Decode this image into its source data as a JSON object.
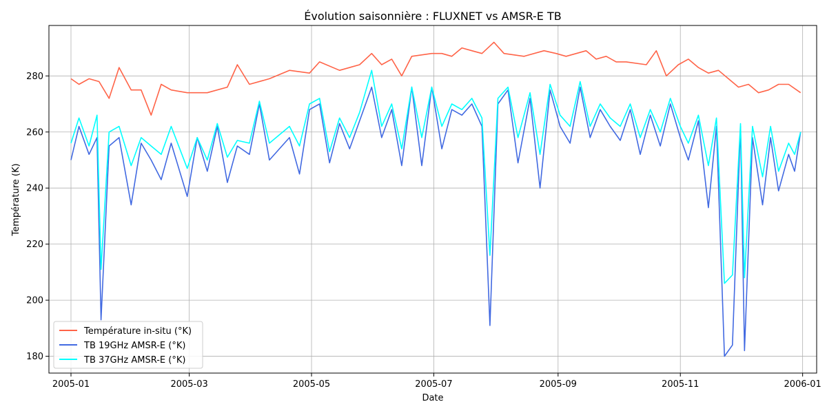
{
  "chart_data": {
    "type": "line",
    "title": "Évolution saisonnière : FLUXNET vs AMSR-E TB",
    "xlabel": "Date",
    "ylabel": "Température (K)",
    "x_range": [
      "2004-12-21",
      "2006-01-08"
    ],
    "ylim": [
      174,
      298
    ],
    "grid": true,
    "legend_position": "bottom-left",
    "x_ticks": [
      "2005-01",
      "2005-03",
      "2005-05",
      "2005-07",
      "2005-09",
      "2005-11",
      "2006-01"
    ],
    "y_ticks": [
      180,
      200,
      220,
      240,
      260,
      280
    ],
    "series": [
      {
        "name": "Température in-situ (°K)",
        "color": "#ff6347",
        "points": [
          [
            "2005-01-01",
            279
          ],
          [
            "2005-01-05",
            277
          ],
          [
            "2005-01-10",
            279
          ],
          [
            "2005-01-15",
            278
          ],
          [
            "2005-01-20",
            272
          ],
          [
            "2005-01-25",
            283
          ],
          [
            "2005-01-31",
            275
          ],
          [
            "2005-02-05",
            275
          ],
          [
            "2005-02-10",
            266
          ],
          [
            "2005-02-15",
            277
          ],
          [
            "2005-02-20",
            275
          ],
          [
            "2005-02-28",
            274
          ],
          [
            "2005-03-10",
            274
          ],
          [
            "2005-03-20",
            276
          ],
          [
            "2005-03-25",
            284
          ],
          [
            "2005-03-31",
            277
          ],
          [
            "2005-04-10",
            279
          ],
          [
            "2005-04-20",
            282
          ],
          [
            "2005-04-30",
            281
          ],
          [
            "2005-05-05",
            285
          ],
          [
            "2005-05-15",
            282
          ],
          [
            "2005-05-25",
            284
          ],
          [
            "2005-05-31",
            288
          ],
          [
            "2005-06-05",
            284
          ],
          [
            "2005-06-10",
            286
          ],
          [
            "2005-06-15",
            280
          ],
          [
            "2005-06-20",
            287
          ],
          [
            "2005-06-30",
            288
          ],
          [
            "2005-07-05",
            288
          ],
          [
            "2005-07-10",
            287
          ],
          [
            "2005-07-15",
            290
          ],
          [
            "2005-07-20",
            289
          ],
          [
            "2005-07-25",
            288
          ],
          [
            "2005-07-31",
            292
          ],
          [
            "2005-08-05",
            288
          ],
          [
            "2005-08-15",
            287
          ],
          [
            "2005-08-25",
            289
          ],
          [
            "2005-08-31",
            288
          ],
          [
            "2005-09-05",
            287
          ],
          [
            "2005-09-15",
            289
          ],
          [
            "2005-09-20",
            286
          ],
          [
            "2005-09-25",
            287
          ],
          [
            "2005-09-30",
            285
          ],
          [
            "2005-10-05",
            285
          ],
          [
            "2005-10-15",
            284
          ],
          [
            "2005-10-20",
            289
          ],
          [
            "2005-10-25",
            280
          ],
          [
            "2005-10-31",
            284
          ],
          [
            "2005-11-05",
            286
          ],
          [
            "2005-11-10",
            283
          ],
          [
            "2005-11-15",
            281
          ],
          [
            "2005-11-20",
            282
          ],
          [
            "2005-11-25",
            279
          ],
          [
            "2005-11-30",
            276
          ],
          [
            "2005-12-05",
            277
          ],
          [
            "2005-12-10",
            274
          ],
          [
            "2005-12-15",
            275
          ],
          [
            "2005-12-20",
            277
          ],
          [
            "2005-12-25",
            277
          ],
          [
            "2005-12-31",
            274
          ]
        ]
      },
      {
        "name": "TB 19GHz AMSR-E (°K)",
        "color": "#4169e1",
        "points": [
          [
            "2005-01-01",
            250
          ],
          [
            "2005-01-05",
            262
          ],
          [
            "2005-01-10",
            252
          ],
          [
            "2005-01-14",
            258
          ],
          [
            "2005-01-16",
            193
          ],
          [
            "2005-01-20",
            255
          ],
          [
            "2005-01-25",
            258
          ],
          [
            "2005-01-31",
            234
          ],
          [
            "2005-02-05",
            256
          ],
          [
            "2005-02-10",
            250
          ],
          [
            "2005-02-15",
            243
          ],
          [
            "2005-02-20",
            256
          ],
          [
            "2005-02-28",
            237
          ],
          [
            "2005-03-05",
            258
          ],
          [
            "2005-03-10",
            246
          ],
          [
            "2005-03-15",
            262
          ],
          [
            "2005-03-20",
            242
          ],
          [
            "2005-03-25",
            255
          ],
          [
            "2005-03-31",
            252
          ],
          [
            "2005-04-05",
            270
          ],
          [
            "2005-04-10",
            250
          ],
          [
            "2005-04-20",
            258
          ],
          [
            "2005-04-25",
            245
          ],
          [
            "2005-04-30",
            268
          ],
          [
            "2005-05-05",
            270
          ],
          [
            "2005-05-10",
            249
          ],
          [
            "2005-05-15",
            263
          ],
          [
            "2005-05-20",
            254
          ],
          [
            "2005-05-25",
            264
          ],
          [
            "2005-05-31",
            276
          ],
          [
            "2005-06-05",
            258
          ],
          [
            "2005-06-10",
            268
          ],
          [
            "2005-06-15",
            248
          ],
          [
            "2005-06-20",
            276
          ],
          [
            "2005-06-25",
            248
          ],
          [
            "2005-06-30",
            276
          ],
          [
            "2005-07-05",
            254
          ],
          [
            "2005-07-10",
            268
          ],
          [
            "2005-07-15",
            266
          ],
          [
            "2005-07-20",
            270
          ],
          [
            "2005-07-25",
            262
          ],
          [
            "2005-07-29",
            191
          ],
          [
            "2005-08-02",
            270
          ],
          [
            "2005-08-07",
            275
          ],
          [
            "2005-08-12",
            249
          ],
          [
            "2005-08-18",
            272
          ],
          [
            "2005-08-23",
            240
          ],
          [
            "2005-08-28",
            275
          ],
          [
            "2005-09-02",
            262
          ],
          [
            "2005-09-07",
            256
          ],
          [
            "2005-09-12",
            276
          ],
          [
            "2005-09-17",
            258
          ],
          [
            "2005-09-22",
            268
          ],
          [
            "2005-09-27",
            262
          ],
          [
            "2005-10-02",
            257
          ],
          [
            "2005-10-07",
            268
          ],
          [
            "2005-10-12",
            252
          ],
          [
            "2005-10-17",
            266
          ],
          [
            "2005-10-22",
            255
          ],
          [
            "2005-10-27",
            270
          ],
          [
            "2005-11-01",
            258
          ],
          [
            "2005-11-05",
            250
          ],
          [
            "2005-11-10",
            264
          ],
          [
            "2005-11-15",
            233
          ],
          [
            "2005-11-19",
            262
          ],
          [
            "2005-11-23",
            180
          ],
          [
            "2005-11-27",
            184
          ],
          [
            "2005-12-01",
            262
          ],
          [
            "2005-12-03",
            182
          ],
          [
            "2005-12-07",
            258
          ],
          [
            "2005-12-12",
            234
          ],
          [
            "2005-12-16",
            258
          ],
          [
            "2005-12-20",
            239
          ],
          [
            "2005-12-25",
            252
          ],
          [
            "2005-12-28",
            246
          ],
          [
            "2005-12-31",
            260
          ]
        ]
      },
      {
        "name": "TB 37GHz AMSR-E (°K)",
        "color": "#00ffff",
        "points": [
          [
            "2005-01-01",
            256
          ],
          [
            "2005-01-05",
            265
          ],
          [
            "2005-01-10",
            255
          ],
          [
            "2005-01-14",
            266
          ],
          [
            "2005-01-16",
            211
          ],
          [
            "2005-01-20",
            260
          ],
          [
            "2005-01-25",
            262
          ],
          [
            "2005-01-31",
            248
          ],
          [
            "2005-02-05",
            258
          ],
          [
            "2005-02-10",
            255
          ],
          [
            "2005-02-15",
            252
          ],
          [
            "2005-02-20",
            262
          ],
          [
            "2005-02-28",
            247
          ],
          [
            "2005-03-05",
            258
          ],
          [
            "2005-03-10",
            250
          ],
          [
            "2005-03-15",
            263
          ],
          [
            "2005-03-20",
            251
          ],
          [
            "2005-03-25",
            257
          ],
          [
            "2005-03-31",
            256
          ],
          [
            "2005-04-05",
            271
          ],
          [
            "2005-04-10",
            256
          ],
          [
            "2005-04-20",
            262
          ],
          [
            "2005-04-25",
            255
          ],
          [
            "2005-04-30",
            270
          ],
          [
            "2005-05-05",
            272
          ],
          [
            "2005-05-10",
            253
          ],
          [
            "2005-05-15",
            265
          ],
          [
            "2005-05-20",
            258
          ],
          [
            "2005-05-25",
            267
          ],
          [
            "2005-05-31",
            282
          ],
          [
            "2005-06-05",
            262
          ],
          [
            "2005-06-10",
            270
          ],
          [
            "2005-06-15",
            254
          ],
          [
            "2005-06-20",
            276
          ],
          [
            "2005-06-25",
            258
          ],
          [
            "2005-06-30",
            276
          ],
          [
            "2005-07-05",
            262
          ],
          [
            "2005-07-10",
            270
          ],
          [
            "2005-07-15",
            268
          ],
          [
            "2005-07-20",
            272
          ],
          [
            "2005-07-25",
            265
          ],
          [
            "2005-07-29",
            216
          ],
          [
            "2005-08-02",
            272
          ],
          [
            "2005-08-07",
            276
          ],
          [
            "2005-08-12",
            258
          ],
          [
            "2005-08-18",
            274
          ],
          [
            "2005-08-23",
            252
          ],
          [
            "2005-08-28",
            277
          ],
          [
            "2005-09-02",
            266
          ],
          [
            "2005-09-07",
            262
          ],
          [
            "2005-09-12",
            278
          ],
          [
            "2005-09-17",
            262
          ],
          [
            "2005-09-22",
            270
          ],
          [
            "2005-09-27",
            265
          ],
          [
            "2005-10-02",
            262
          ],
          [
            "2005-10-07",
            270
          ],
          [
            "2005-10-12",
            258
          ],
          [
            "2005-10-17",
            268
          ],
          [
            "2005-10-22",
            260
          ],
          [
            "2005-10-27",
            272
          ],
          [
            "2005-11-01",
            262
          ],
          [
            "2005-11-05",
            256
          ],
          [
            "2005-11-10",
            266
          ],
          [
            "2005-11-15",
            248
          ],
          [
            "2005-11-19",
            265
          ],
          [
            "2005-11-23",
            206
          ],
          [
            "2005-11-27",
            209
          ],
          [
            "2005-12-01",
            263
          ],
          [
            "2005-12-03",
            208
          ],
          [
            "2005-12-07",
            262
          ],
          [
            "2005-12-12",
            244
          ],
          [
            "2005-12-16",
            262
          ],
          [
            "2005-12-20",
            246
          ],
          [
            "2005-12-25",
            256
          ],
          [
            "2005-12-28",
            252
          ],
          [
            "2005-12-31",
            260
          ]
        ]
      }
    ]
  }
}
